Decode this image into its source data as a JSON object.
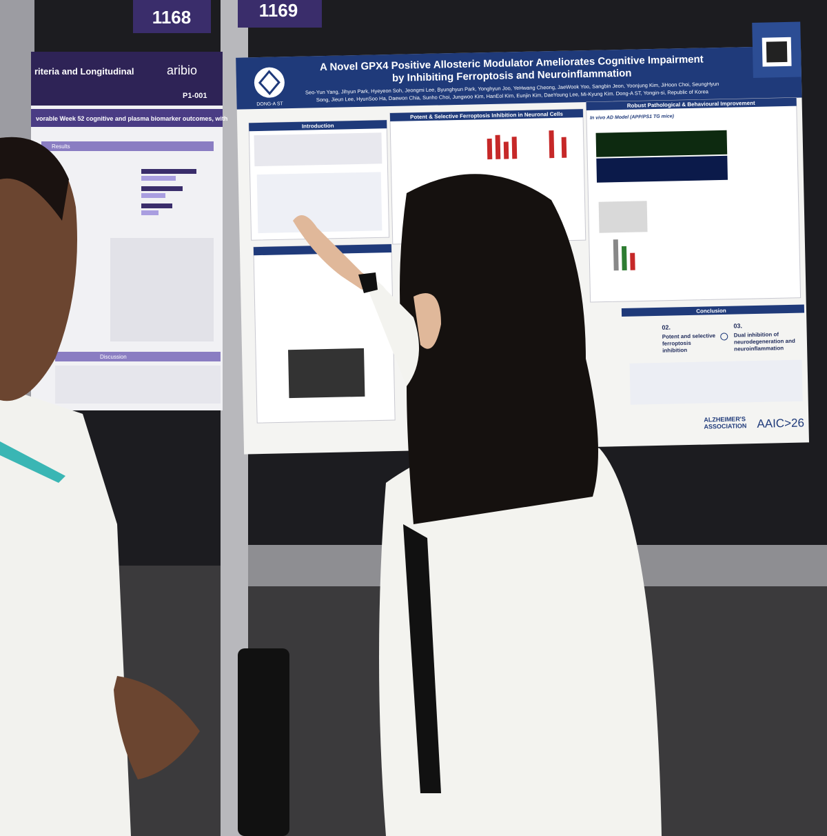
{
  "booths": {
    "left": "1168",
    "right": "1169"
  },
  "left_poster": {
    "title_fragment": "riteria and Longitudinal",
    "logo": "aribio",
    "code": "P1-001",
    "subtitle_fragment": "vorable Week 52 cognitive and plasma biomarker outcomes, with",
    "results": "Results",
    "discussion": "Discussion"
  },
  "main_poster": {
    "title": [
      "A Novel GPX4 Positive Allosteric Modulator Ameliorates Cognitive Impairment",
      "by Inhibiting Ferroptosis and Neuroinflammation"
    ],
    "authors": [
      "Seo-Yun Yang, Jihyun Park, Hyeyeon Soh, Jeongmi Lee, Byunghyun Park, Yonghyun Joo, YeHwang Cheong, JaeWook Yoo, Sangbin Jeon, Yoonjung Kim, JiHoon Choi, SeungHyun",
      "Song, Jieun Lee, HyunSoo Ha, Daewon Chia, Sunho Choi, Jungwoo Kim, HanEol Kim, Eunjin Kim, DaeYoung Lee, Mi-Kyung Kim. Dong-A ST, Yongin-si, Republic of Korea"
    ],
    "logo": "DONG-A ST",
    "sections": {
      "introduction": "Introduction",
      "inhibition": "Potent & Selective Ferroptosis Inhibition in Neuronal Cells",
      "improvement": "Robust Pathological & Behavioural Improvement",
      "model": "In vivo AD Model (APP/PS1 TG mice)",
      "conclusion": "Conclusion"
    },
    "conclusion_points": [
      {
        "number": "02.",
        "text": [
          "Potent and selective",
          "ferroptosis",
          "inhibition"
        ]
      },
      {
        "number": "03.",
        "text": [
          "Dual inhibition of",
          "neurodegeneration and",
          "neuroinflammation"
        ]
      }
    ],
    "footer": {
      "association": [
        "ALZHEIMER'S",
        "ASSOCIATION"
      ],
      "meeting": "AAIC>26"
    }
  }
}
